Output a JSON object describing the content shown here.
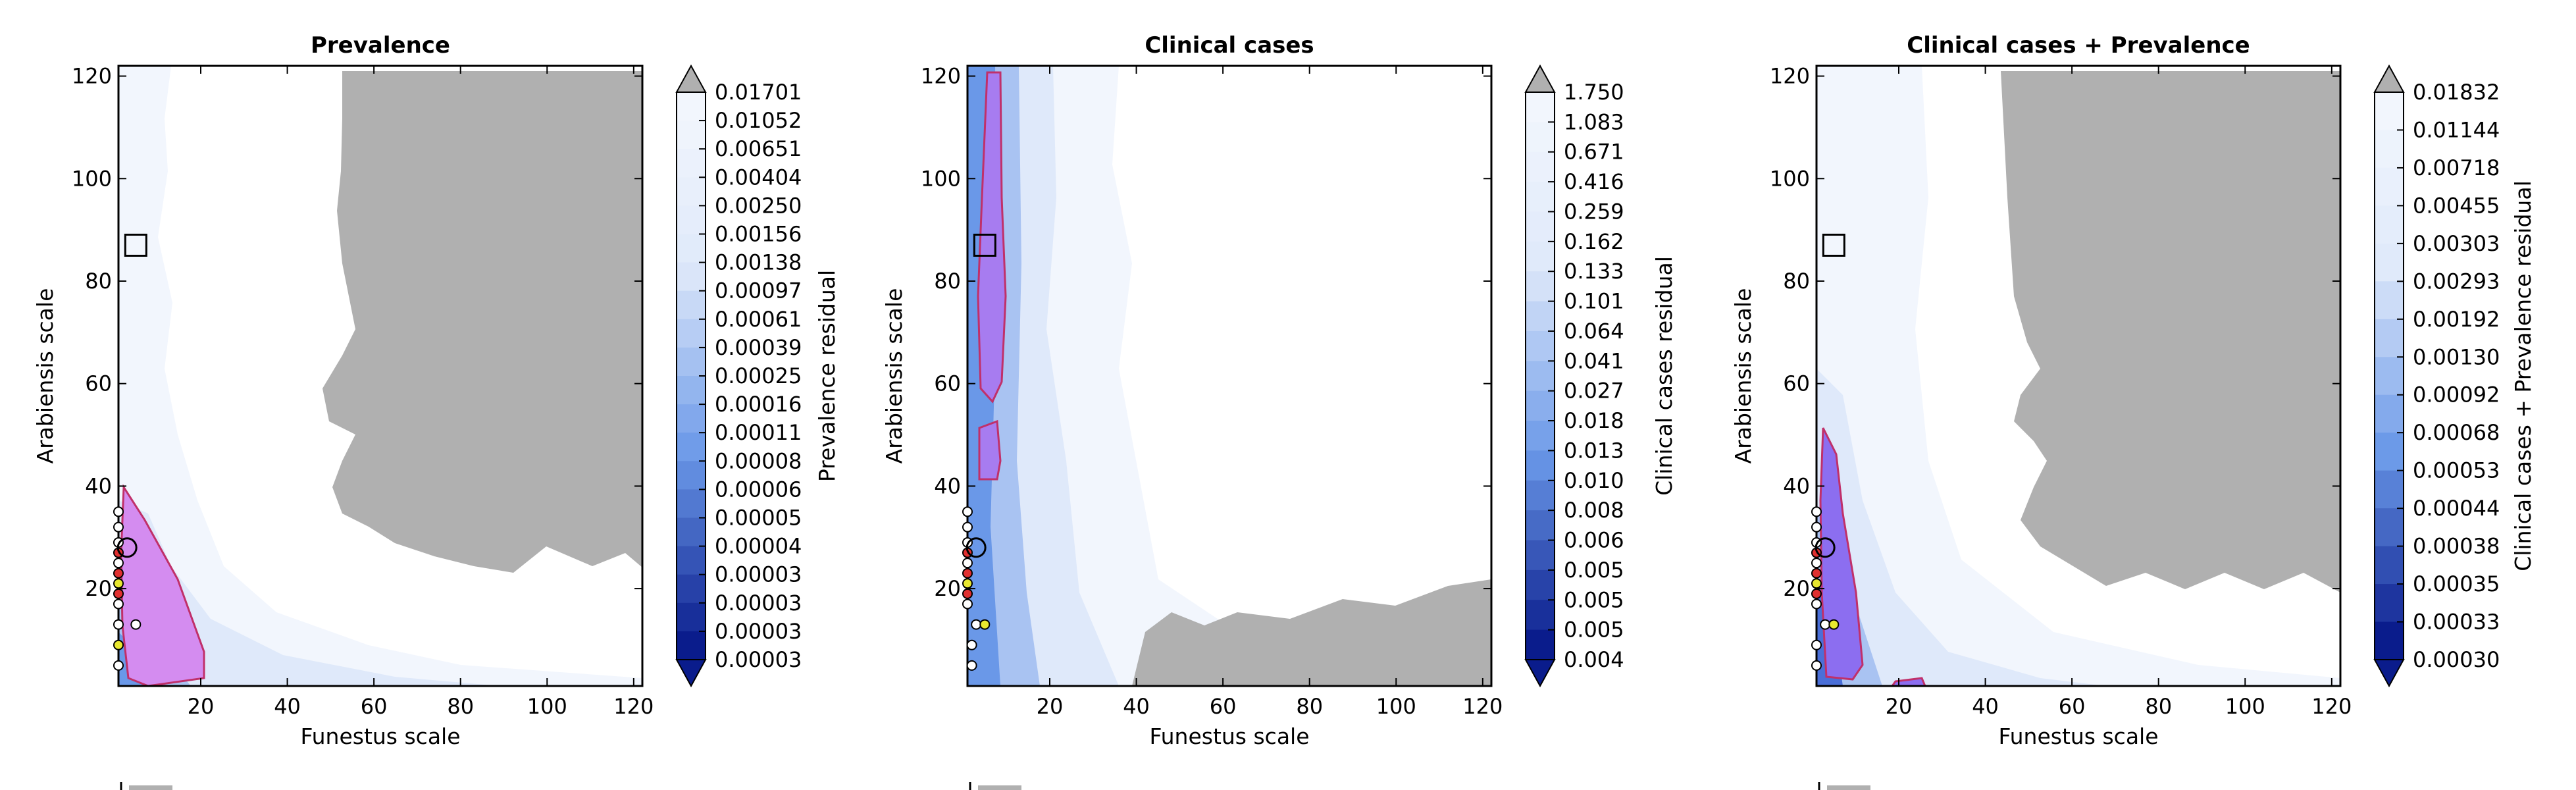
{
  "chart_data": [
    {
      "type": "heatmap",
      "title": "Prevalence",
      "xlabel": "Funestus scale",
      "ylabel": "Arabiensis scale",
      "xlim": [
        1,
        122
      ],
      "ylim": [
        1,
        122
      ],
      "xticks": [
        "20",
        "40",
        "60",
        "80",
        "100",
        "120"
      ],
      "yticks": [
        "20",
        "40",
        "60",
        "80",
        "100",
        "120"
      ],
      "colorbar_label": "Prevalence residual",
      "colorbar_levels": [
        "0.01701",
        "0.01052",
        "0.00651",
        "0.00404",
        "0.00250",
        "0.00156",
        "0.00138",
        "0.00097",
        "0.00061",
        "0.00039",
        "0.00025",
        "0.00016",
        "0.00011",
        "0.00008",
        "0.00006",
        "0.00005",
        "0.00004",
        "0.00003",
        "0.00003",
        "0.00003",
        "0.00003"
      ],
      "masked_region_color": "#b0b0b0",
      "highlight_region_color": "#d48cf0",
      "square_marker": {
        "x": 5,
        "y": 87
      },
      "circle_marker": {
        "x": 3,
        "y": 28
      },
      "sample_points": [
        [
          1,
          35
        ],
        [
          1,
          32
        ],
        [
          1,
          29
        ],
        [
          1,
          27
        ],
        [
          1,
          25
        ],
        [
          1,
          23
        ],
        [
          1,
          21
        ],
        [
          1,
          19
        ],
        [
          1,
          17
        ],
        [
          1,
          13
        ],
        [
          1,
          9
        ],
        [
          1,
          5
        ],
        [
          5,
          13
        ]
      ]
    },
    {
      "type": "heatmap",
      "title": "Clinical cases",
      "xlabel": "Funestus scale",
      "ylabel": "Arabiensis scale",
      "xlim": [
        1,
        122
      ],
      "ylim": [
        1,
        122
      ],
      "xticks": [
        "20",
        "40",
        "60",
        "80",
        "100",
        "120"
      ],
      "yticks": [
        "20",
        "40",
        "60",
        "80",
        "100",
        "120"
      ],
      "colorbar_label": "Clinical cases residual",
      "colorbar_levels": [
        "1.750",
        "1.083",
        "0.671",
        "0.416",
        "0.259",
        "0.162",
        "0.133",
        "0.101",
        "0.064",
        "0.041",
        "0.027",
        "0.018",
        "0.013",
        "0.010",
        "0.008",
        "0.006",
        "0.005",
        "0.005",
        "0.005",
        "0.004"
      ],
      "masked_region_color": "#b0b0b0",
      "highlight_region_color": "#a77cf0",
      "square_marker": {
        "x": 5,
        "y": 87
      },
      "circle_marker": {
        "x": 3,
        "y": 28
      },
      "sample_points": [
        [
          1,
          35
        ],
        [
          1,
          32
        ],
        [
          1,
          29
        ],
        [
          1,
          27
        ],
        [
          1,
          25
        ],
        [
          1,
          23
        ],
        [
          1,
          21
        ],
        [
          1,
          19
        ],
        [
          1,
          17
        ],
        [
          3,
          13
        ],
        [
          5,
          13
        ],
        [
          2,
          9
        ],
        [
          2,
          5
        ]
      ]
    },
    {
      "type": "heatmap",
      "title": "Clinical cases + Prevalence",
      "xlabel": "Funestus scale",
      "ylabel": "Arabiensis scale",
      "xlim": [
        1,
        122
      ],
      "ylim": [
        1,
        122
      ],
      "xticks": [
        "20",
        "40",
        "60",
        "80",
        "100",
        "120"
      ],
      "yticks": [
        "20",
        "40",
        "60",
        "80",
        "100",
        "120"
      ],
      "colorbar_label": "Clinical cases + Prevalence residual",
      "colorbar_levels": [
        "0.01832",
        "0.01144",
        "0.00718",
        "0.00455",
        "0.00303",
        "0.00293",
        "0.00192",
        "0.00130",
        "0.00092",
        "0.00068",
        "0.00053",
        "0.00044",
        "0.00038",
        "0.00035",
        "0.00033",
        "0.00030"
      ],
      "masked_region_color": "#b0b0b0",
      "highlight_region_color": "#8c6ef0",
      "square_marker": {
        "x": 5,
        "y": 87
      },
      "circle_marker": {
        "x": 3,
        "y": 28
      },
      "sample_points": [
        [
          1,
          35
        ],
        [
          1,
          32
        ],
        [
          1,
          29
        ],
        [
          1,
          27
        ],
        [
          1,
          25
        ],
        [
          1,
          23
        ],
        [
          1,
          21
        ],
        [
          1,
          19
        ],
        [
          1,
          17
        ],
        [
          3,
          13
        ],
        [
          5,
          13
        ],
        [
          1,
          9
        ],
        [
          1,
          5
        ]
      ]
    }
  ],
  "palette": {
    "lightest": "#f2f6fd",
    "light": "#dfe9fa",
    "mid": "#6a98e8",
    "dark": "#0a1c8c",
    "outline": "#c0306a"
  }
}
